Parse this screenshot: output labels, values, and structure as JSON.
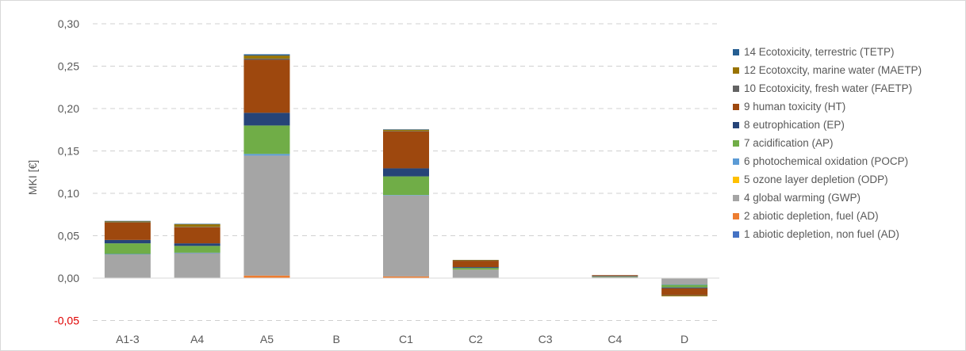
{
  "chart_data": {
    "type": "bar",
    "stacked": true,
    "ylabel": "MKI [€]",
    "ylim": [
      -0.05,
      0.3
    ],
    "yticks": [
      "-0,05",
      "0,00",
      "0,05",
      "0,10",
      "0,15",
      "0,20",
      "0,25",
      "0,30"
    ],
    "ytick_values": [
      -0.05,
      0,
      0.05,
      0.1,
      0.15,
      0.2,
      0.25,
      0.3
    ],
    "grid": true,
    "legend_position": "right",
    "categories": [
      "A1-3",
      "A4",
      "A5",
      "B",
      "C1",
      "C2",
      "C3",
      "C4",
      "D"
    ],
    "series": [
      {
        "name": "1 abiotic depletion, non fuel (AD)",
        "color": "#4472c4",
        "values": [
          0,
          0,
          0,
          0,
          0,
          0,
          0,
          0,
          0
        ]
      },
      {
        "name": "2 abiotic depletion, fuel (AD)",
        "color": "#ed7d31",
        "values": [
          0.0005,
          0.0005,
          0.003,
          0,
          0.002,
          0.0005,
          0,
          0,
          -0.0005
        ]
      },
      {
        "name": "4 global warming (GWP)",
        "color": "#a5a5a5",
        "values": [
          0.0275,
          0.029,
          0.1415,
          0,
          0.0955,
          0.0095,
          0,
          0.0015,
          -0.007
        ]
      },
      {
        "name": "5 ozone layer depletion (ODP)",
        "color": "#ffc000",
        "values": [
          0,
          0,
          0,
          0,
          0,
          0,
          0,
          0,
          0
        ]
      },
      {
        "name": "6 photochemical oxidation (POCP)",
        "color": "#5b9bd5",
        "values": [
          0.0005,
          0.0005,
          0.002,
          0,
          0.0005,
          0,
          0,
          0,
          -0.0005
        ]
      },
      {
        "name": "7 acidification (AP)",
        "color": "#70ad47",
        "values": [
          0.0125,
          0.008,
          0.0335,
          0,
          0.022,
          0.002,
          0,
          0.0005,
          -0.003
        ]
      },
      {
        "name": "8 eutrophication (EP)",
        "color": "#264478",
        "values": [
          0.004,
          0.003,
          0.015,
          0,
          0.0095,
          0.001,
          0,
          0.0005,
          -0.001
        ]
      },
      {
        "name": "9 human toxicity (HT)",
        "color": "#9e480e",
        "values": [
          0.0205,
          0.019,
          0.0625,
          0,
          0.0435,
          0.0075,
          0,
          0.001,
          -0.008
        ]
      },
      {
        "name": "10 Ecotoxicity, fresh water (FAETP)",
        "color": "#636363",
        "values": [
          0.0005,
          0.0005,
          0.0015,
          0,
          0.0005,
          0.0005,
          0,
          0,
          -0.0005
        ]
      },
      {
        "name": "12 Ecotoxcity, marine water (MAETP)",
        "color": "#997300",
        "values": [
          0.001,
          0.003,
          0.0035,
          0,
          0.0015,
          0.0005,
          0,
          0,
          -0.001
        ]
      },
      {
        "name": "14 Ecotoxicity, terrestric (TETP)",
        "color": "#255e91",
        "values": [
          0.0005,
          0.0005,
          0.0015,
          0,
          0.0005,
          0,
          0,
          0,
          0
        ]
      }
    ]
  }
}
